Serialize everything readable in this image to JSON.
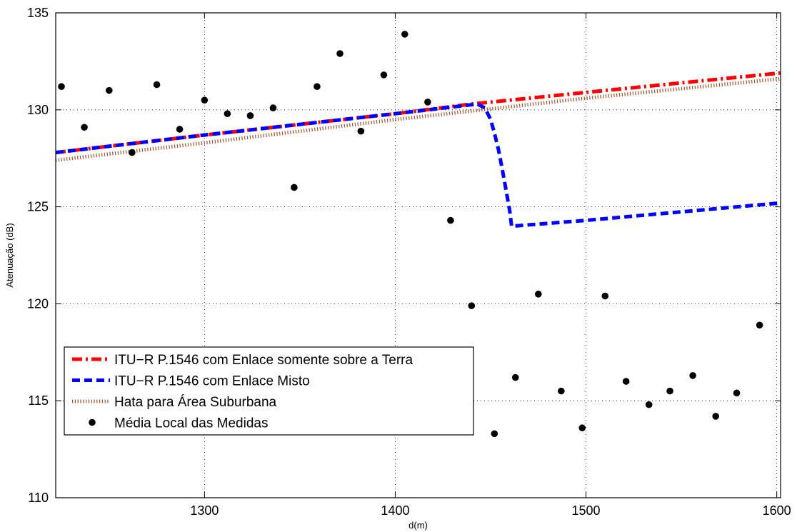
{
  "chart_data": {
    "type": "line",
    "xlabel": "d(m)",
    "ylabel": "Atenuação (dB)",
    "xlim": [
      1222,
      1602
    ],
    "ylim": [
      110,
      135
    ],
    "x_ticks": [
      1300,
      1400,
      1500,
      1600
    ],
    "y_ticks": [
      110,
      115,
      120,
      125,
      130,
      135
    ],
    "grid": true,
    "legend_position": "bottom-left",
    "series": [
      {
        "name": "ITU−R P.1546 com Enlace somente sobre a Terra",
        "style": "dash-dot",
        "color": "#ff0000",
        "x": [
          1222,
          1300,
          1400,
          1440,
          1500,
          1602
        ],
        "y": [
          127.8,
          128.7,
          129.8,
          130.3,
          130.9,
          131.9
        ]
      },
      {
        "name": "ITU−R P.1546 com Enlace Misto",
        "style": "dashed",
        "color": "#0000ff",
        "x": [
          1222,
          1300,
          1400,
          1443,
          1447,
          1450,
          1452,
          1454,
          1456,
          1458,
          1460,
          1461,
          1500,
          1602
        ],
        "y": [
          127.8,
          128.7,
          129.8,
          130.3,
          130.1,
          129.5,
          128.8,
          128.0,
          127.0,
          125.9,
          124.8,
          124.0,
          124.3,
          125.2
        ]
      },
      {
        "name": "Hata para Área Suburbana",
        "style": "dotted",
        "color": "#a0522d",
        "x": [
          1222,
          1300,
          1400,
          1500,
          1602
        ],
        "y": [
          127.4,
          128.3,
          129.5,
          130.6,
          131.6
        ]
      },
      {
        "name": "Média Local das Medidas",
        "style": "markers",
        "color": "#000000",
        "x": [
          1225,
          1237,
          1250,
          1262,
          1275,
          1287,
          1300,
          1312,
          1324,
          1336,
          1347,
          1359,
          1371,
          1382,
          1394,
          1405,
          1417,
          1429,
          1440,
          1452,
          1463,
          1475,
          1487,
          1498,
          1510,
          1521,
          1533,
          1544,
          1556,
          1568,
          1579,
          1591
        ],
        "y": [
          131.2,
          129.1,
          131.0,
          127.8,
          131.3,
          129.0,
          130.5,
          129.8,
          129.7,
          130.1,
          126.0,
          131.2,
          132.9,
          128.9,
          131.8,
          133.9,
          130.4,
          124.3,
          119.9,
          113.3,
          116.2,
          120.5,
          115.5,
          113.6,
          120.4,
          116.0,
          114.8,
          115.5,
          116.3,
          114.2,
          115.4,
          118.9
        ]
      }
    ]
  }
}
